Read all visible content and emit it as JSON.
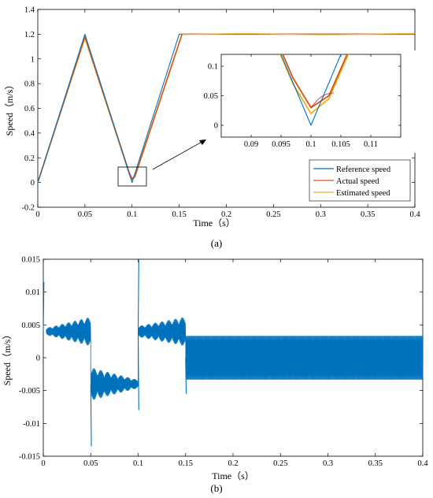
{
  "chart_data": [
    {
      "panel_label": "(a)",
      "type": "line",
      "xlabel": "Time（s）",
      "ylabel": "Speed（m/s）",
      "xlim": [
        0,
        0.4
      ],
      "ylim": [
        -0.2,
        1.4
      ],
      "xticks": [
        "0",
        "0.05",
        "0.1",
        "0.15",
        "0.2",
        "0.25",
        "0.3",
        "0.35",
        "0.4"
      ],
      "yticks": [
        "-0.2",
        "0",
        "0.2",
        "0.4",
        "0.6",
        "0.8",
        "1",
        "1.2",
        "1.4"
      ],
      "grid": false,
      "legend_position": "lower-right",
      "series": [
        {
          "name": "Reference speed",
          "color": "#0072BD",
          "x": [
            0,
            0.05,
            0.1,
            0.15,
            0.4
          ],
          "y": [
            0,
            1.2,
            0,
            1.2,
            1.2
          ]
        },
        {
          "name": "Actual speed",
          "color": "#D95319",
          "x": [
            0,
            0.05,
            0.097,
            0.1,
            0.103,
            0.153,
            0.4
          ],
          "y": [
            0,
            1.18,
            0.08,
            0.03,
            0.05,
            1.2,
            1.2
          ]
        },
        {
          "name": "Estimated speed",
          "color": "#EDB120",
          "x": [
            0,
            0.05,
            0.097,
            0.1,
            0.103,
            0.153,
            0.4
          ],
          "y": [
            0,
            1.17,
            0.07,
            0.02,
            0.045,
            1.2,
            1.2
          ]
        }
      ],
      "inset": {
        "xlim": [
          0.085,
          0.115
        ],
        "ylim": [
          -0.02,
          0.12
        ],
        "xticks": [
          "0.09",
          "0.095",
          "0.1",
          "0.105",
          "0.11"
        ],
        "yticks": [
          "0",
          "0.05",
          "0.1"
        ],
        "zoom_box": {
          "x": [
            0.085,
            0.115
          ],
          "y": [
            -0.02,
            0.12
          ]
        }
      }
    },
    {
      "panel_label": "(b)",
      "type": "line",
      "xlabel": "Time（s）",
      "ylabel": "Speed（m/s）",
      "xlim": [
        0,
        0.4
      ],
      "ylim": [
        -0.015,
        0.015
      ],
      "xticks": [
        "0",
        "0.05",
        "0.1",
        "0.15",
        "0.2",
        "0.25",
        "0.3",
        "0.35",
        "0.4"
      ],
      "yticks": [
        "-0.015",
        "-0.01",
        "-0.005",
        "0",
        "0.005",
        "0.01",
        "0.015"
      ],
      "grid": false,
      "series": [
        {
          "color": "#0072BD",
          "segments": [
            {
              "x": [
                0.003,
                0.05
              ],
              "center": 0.004,
              "amplitude_start": 0.0005,
              "amplitude_end": 0.0022
            },
            {
              "x": [
                0.05,
                0.1
              ],
              "center": -0.004,
              "amplitude_start": 0.0025,
              "amplitude_end": 0.0006
            },
            {
              "x": [
                0.1,
                0.15
              ],
              "center": 0.004,
              "amplitude_start": 0.0008,
              "amplitude_end": 0.0022
            },
            {
              "x": [
                0.15,
                0.4
              ],
              "center": 0.0,
              "amplitude_start": 0.0033,
              "amplitude_end": 0.0033
            }
          ],
          "spikes": [
            {
              "x": 0.0,
              "y": 0.0115
            },
            {
              "x": 0.05,
              "y": -0.0135
            },
            {
              "x": 0.1,
              "y": 0.015
            },
            {
              "x": 0.1,
              "y": -0.008
            },
            {
              "x": 0.15,
              "y": -0.0055
            }
          ]
        }
      ]
    }
  ]
}
